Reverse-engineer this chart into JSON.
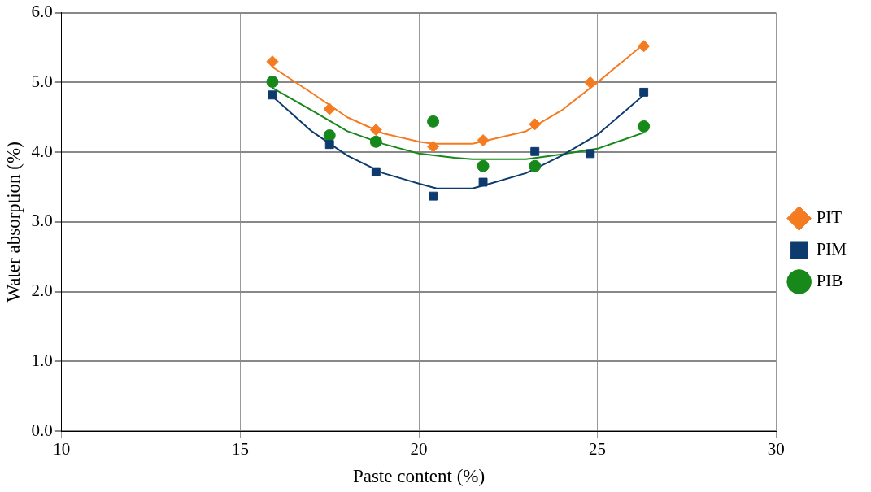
{
  "chart_data": {
    "type": "scatter",
    "xlabel": "Paste content (%)",
    "ylabel": "Water absorption (%)",
    "xlim": [
      10,
      30
    ],
    "xticks": [
      10,
      15,
      20,
      25,
      30
    ],
    "ylim": [
      0,
      6
    ],
    "yticks": [
      {
        "value": 0,
        "label": "0.0"
      },
      {
        "value": 1,
        "label": "1.0"
      },
      {
        "value": 2,
        "label": "2.0"
      },
      {
        "value": 3,
        "label": "3.0"
      },
      {
        "value": 4,
        "label": "4.0"
      },
      {
        "value": 5,
        "label": "5.0"
      },
      {
        "value": 6,
        "label": "6.0"
      }
    ],
    "grid": true,
    "legend": "right",
    "series": [
      {
        "name": "PIT",
        "color": "#f57b20",
        "marker": "diamond",
        "x": [
          15.9,
          17.5,
          18.8,
          20.4,
          21.8,
          23.25,
          24.8,
          26.3
        ],
        "values": [
          5.3,
          4.62,
          4.32,
          4.08,
          4.17,
          4.4,
          5.0,
          5.52
        ]
      },
      {
        "name": "PIM",
        "color": "#0d3b6e",
        "marker": "square",
        "x": [
          15.9,
          17.5,
          18.8,
          20.4,
          21.8,
          23.25,
          24.8,
          26.3
        ],
        "values": [
          4.82,
          4.11,
          3.72,
          3.37,
          3.57,
          4.01,
          3.98,
          4.86
        ]
      },
      {
        "name": "PIB",
        "color": "#17891b",
        "marker": "circle",
        "x": [
          15.9,
          17.5,
          18.8,
          20.4,
          21.8,
          23.25,
          24.8,
          26.3
        ],
        "values": [
          5.01,
          4.24,
          4.15,
          4.44,
          3.8,
          3.8,
          null,
          4.37
        ]
      },
      {
        "type": "line",
        "color": "#f57b20",
        "marker": "none",
        "x": [
          15.9,
          17,
          18,
          19,
          20,
          20.4,
          21.5,
          22,
          23,
          24,
          25,
          26.3
        ],
        "values": [
          5.22,
          4.85,
          4.5,
          4.27,
          4.15,
          4.12,
          4.12,
          4.18,
          4.3,
          4.6,
          5.0,
          5.55
        ]
      },
      {
        "type": "line",
        "color": "#0d3b6e",
        "marker": "none",
        "x": [
          15.9,
          17,
          18,
          19,
          20,
          20.5,
          21.5,
          22,
          23,
          24,
          25,
          26.3
        ],
        "values": [
          4.8,
          4.3,
          3.95,
          3.7,
          3.55,
          3.48,
          3.48,
          3.55,
          3.7,
          3.95,
          4.25,
          4.82
        ]
      },
      {
        "type": "line",
        "color": "#17891b",
        "marker": "none",
        "x": [
          15.9,
          17,
          18,
          19,
          20,
          21,
          21.5,
          23,
          24,
          25,
          26.3
        ],
        "values": [
          4.92,
          4.6,
          4.3,
          4.12,
          3.98,
          3.92,
          3.9,
          3.9,
          3.97,
          4.05,
          4.28
        ]
      }
    ]
  }
}
